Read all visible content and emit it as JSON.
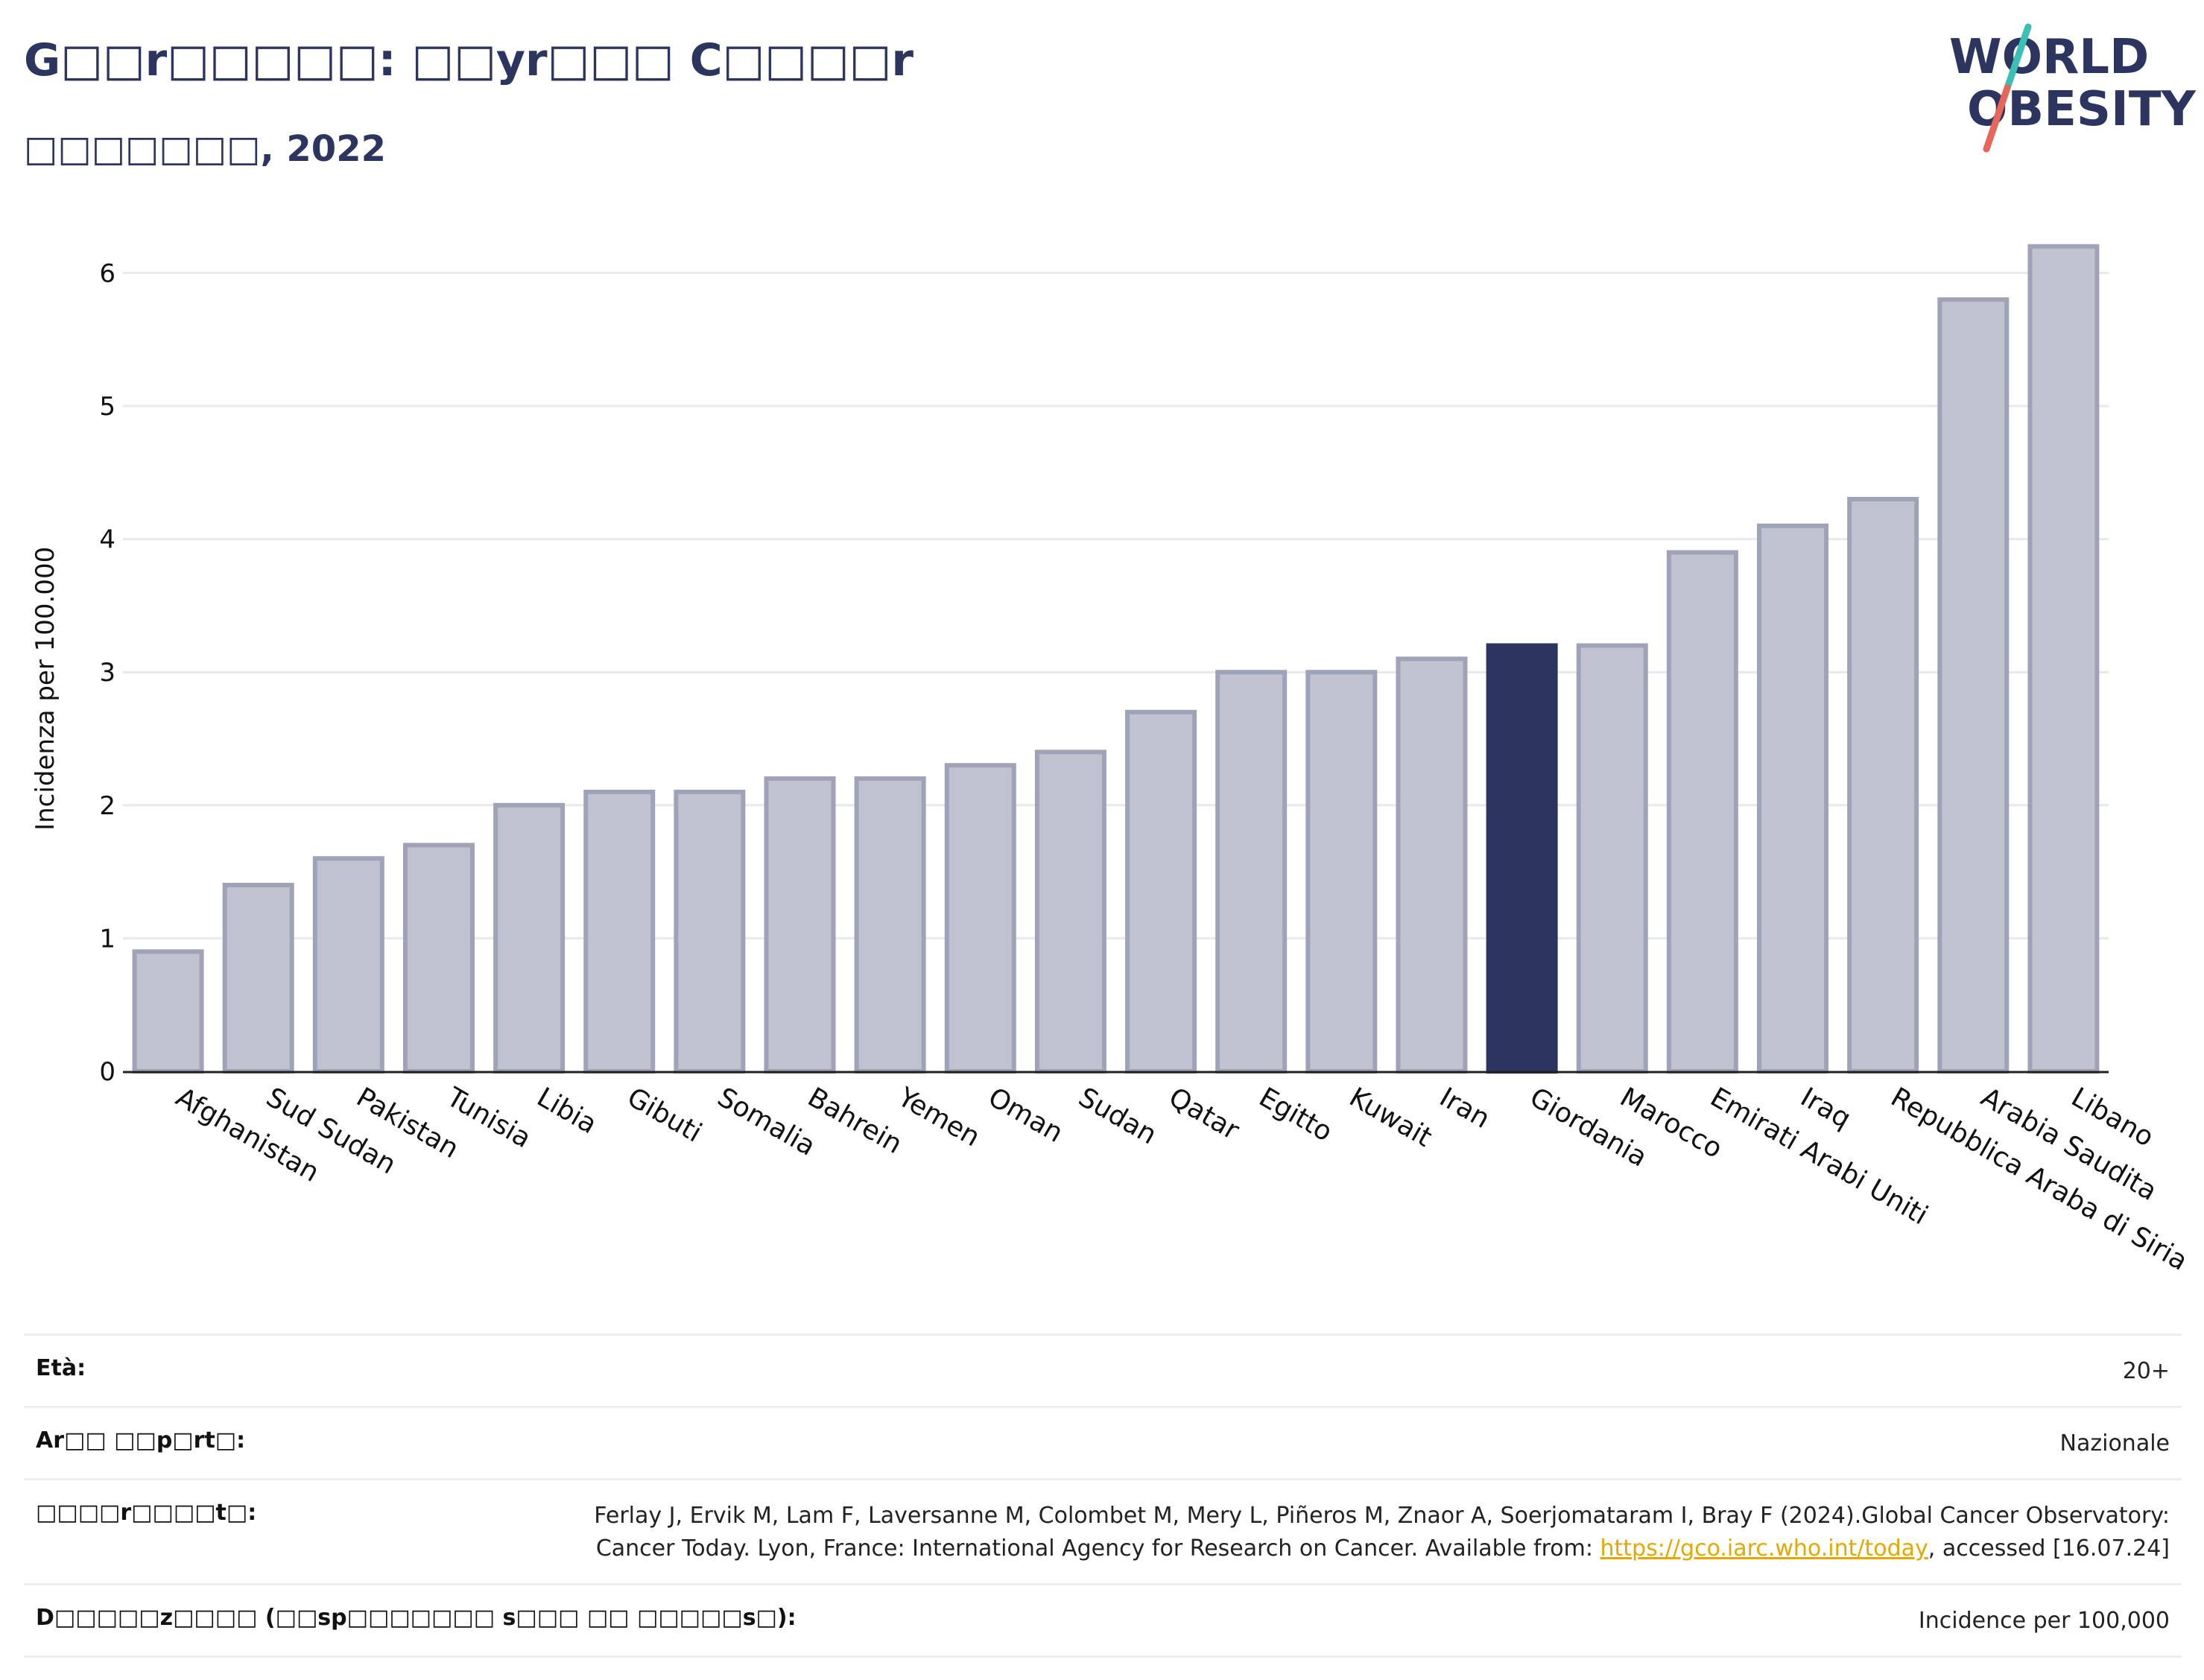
{
  "header": {
    "title": "G□□r□□□□□: □□yr□□□ C□□□□r",
    "subtitle": "□□□□□□□, 2022"
  },
  "logo": {
    "line1": "WORLD",
    "line2": "OBESITY",
    "slash_teal": "#3cc0b4",
    "slash_red": "#e8655a",
    "text_color": "#2b355f"
  },
  "colors": {
    "highlight": "#2b355f",
    "bar_fill": "#c0c3cf",
    "bar_stroke": "#9ea3b8",
    "grid": "#e8e9ee"
  },
  "chart_data": {
    "type": "bar",
    "ylabel": "Incidenza per 100.000",
    "ylim": [
      0,
      6.5
    ],
    "yticks": [
      0,
      1,
      2,
      3,
      4,
      5,
      6
    ],
    "grid": true,
    "highlight": "Giordania",
    "categories": [
      "Afghanistan",
      "Sud Sudan",
      "Pakistan",
      "Tunisia",
      "Libia",
      "Gibuti",
      "Somalia",
      "Bahrein",
      "Yemen",
      "Oman",
      "Sudan",
      "Qatar",
      "Egitto",
      "Kuwait",
      "Iran",
      "Giordania",
      "Marocco",
      "Emirati Arabi Uniti",
      "Iraq",
      "Repubblica Araba di Siria",
      "Arabia Saudita",
      "Libano"
    ],
    "values": [
      0.9,
      1.4,
      1.6,
      1.7,
      2.0,
      2.1,
      2.1,
      2.2,
      2.2,
      2.3,
      2.4,
      2.7,
      3.0,
      3.0,
      3.1,
      3.2,
      3.2,
      3.9,
      4.1,
      4.3,
      5.8,
      6.2
    ]
  },
  "meta": {
    "rows": [
      {
        "label": "Età:",
        "value": "20+"
      },
      {
        "label": "Ar□□ □□p□rt□:",
        "value": "Nazionale"
      },
      {
        "label": "□□□□r□□□□t□:",
        "value": "Ferlay J, Ervik M, Lam F, Laversanne M, Colombet M, Mery L, Piñeros M, Znaor A, Soerjomataram I, Bray F (2024).Global Cancer Observatory: Cancer Today. Lyon, France: International Agency for Research on Cancer. Available from: ",
        "link": "https://gco.iarc.who.int/today",
        "value_after": ", accessed [16.07.24]"
      },
      {
        "label": "D□□□□□z□□□□ (□□sp□□□□□□□ s□□□ □□ □□□□□s□):",
        "value": "Incidence per 100,000"
      }
    ]
  }
}
